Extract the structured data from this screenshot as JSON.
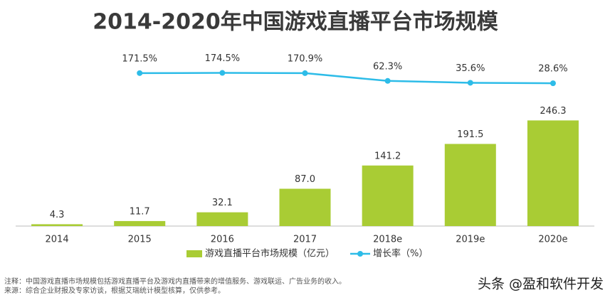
{
  "chart_data": {
    "type": "bar-line",
    "title": "2014-2020年中国游戏直播平台市场规模",
    "categories": [
      "2014",
      "2015",
      "2016",
      "2017",
      "2018e",
      "2019e",
      "2020e"
    ],
    "ylim": [
      0,
      300
    ],
    "y2lim": [
      -400,
      600
    ],
    "series": [
      {
        "name": "游戏直播平台市场规模（亿元）",
        "type": "bar",
        "color": "#a9cc34",
        "values": [
          4.3,
          11.7,
          32.1,
          87.0,
          141.2,
          191.5,
          246.3
        ],
        "value_labels": [
          "4.3",
          "11.7",
          "32.1",
          "87.0",
          "141.2",
          "191.5",
          "246.3"
        ]
      },
      {
        "name": "增长率（%）",
        "type": "line",
        "axis": "y2",
        "color": "#2dbce8",
        "values": [
          null,
          171.5,
          174.5,
          170.9,
          62.3,
          35.6,
          28.6
        ],
        "value_labels": [
          null,
          "171.5%",
          "174.5%",
          "170.9%",
          "62.3%",
          "35.6%",
          "28.6%"
        ]
      }
    ],
    "notes": [
      "注释：中国游戏直播市场规模包括游戏直播平台及游戏内直播带来的增值服务、游戏联运、广告业务的收入。",
      "来源：综合企业财报及专家访谈，根据艾瑞统计模型核算，仅供参考。"
    ],
    "watermark": "头条 @盈和软件开发"
  }
}
